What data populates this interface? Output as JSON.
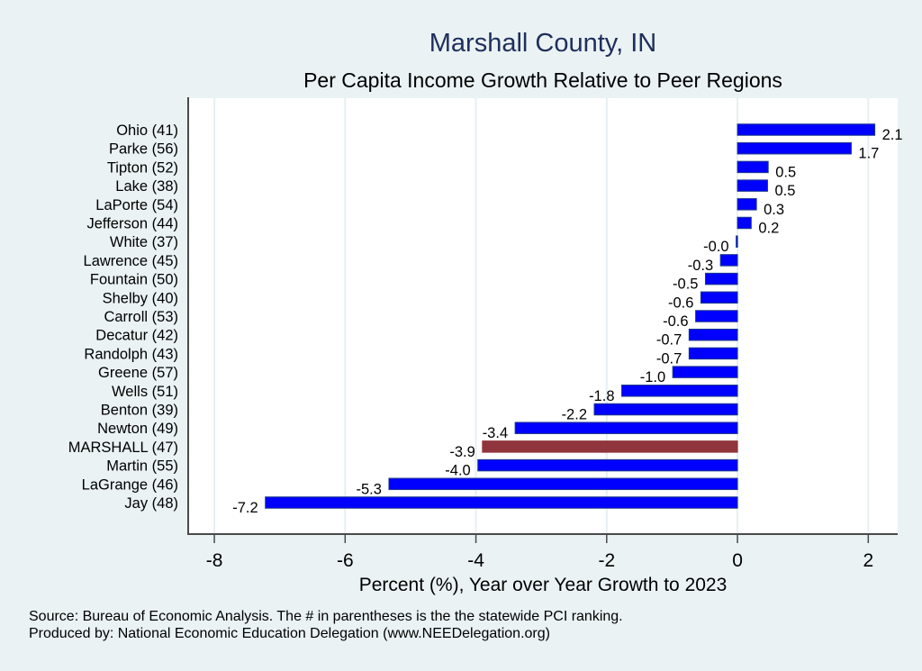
{
  "chart_data": {
    "type": "bar",
    "orientation": "horizontal",
    "title": "Marshall County, IN",
    "subtitle": "Per Capita Income Growth Relative to Peer Regions",
    "xlabel": "Percent (%), Year over Year Growth to 2023",
    "ylabel": "",
    "xlim": [
      -8.4,
      2.45
    ],
    "xticks": [
      -8,
      -6,
      -4,
      -2,
      0,
      2
    ],
    "xtick_labels": [
      "-8",
      "-6",
      "-4",
      "-2",
      "0",
      "2"
    ],
    "grid": "vertical",
    "legend": "none",
    "highlight_category": "MARSHALL (47)",
    "colors": {
      "bar": "#0000ff",
      "bar_edge": "#1a3a8a",
      "highlight": "#90353b",
      "title": "#1e2f5c",
      "background": "#eaf2f3",
      "plot_background": "#ffffff",
      "grid": "#e6eff2"
    },
    "categories": [
      "Ohio (41)",
      "Parke (56)",
      "Tipton (52)",
      "Lake (38)",
      "LaPorte (54)",
      "Jefferson (44)",
      "White (37)",
      "Lawrence (45)",
      "Fountain (50)",
      "Shelby (40)",
      "Carroll (53)",
      "Decatur (42)",
      "Randolph (43)",
      "Greene (57)",
      "Wells (51)",
      "Benton (39)",
      "Newton (49)",
      "MARSHALL (47)",
      "Martin (55)",
      "LaGrange (46)",
      "Jay (48)"
    ],
    "values": [
      2.1,
      1.74,
      0.47,
      0.46,
      0.29,
      0.21,
      -0.02,
      -0.26,
      -0.49,
      -0.56,
      -0.64,
      -0.74,
      -0.74,
      -0.99,
      -1.77,
      -2.19,
      -3.4,
      -3.9,
      -3.97,
      -5.33,
      -7.22
    ],
    "value_labels": [
      "2.1",
      "1.7",
      "0.5",
      "0.5",
      "0.3",
      "0.2",
      "-0.0",
      "-0.3",
      "-0.5",
      "-0.6",
      "-0.6",
      "-0.7",
      "-0.7",
      "-1.0",
      "-1.8",
      "-2.2",
      "-3.4",
      "-3.9",
      "-4.0",
      "-5.3",
      "-7.2"
    ]
  },
  "footer": {
    "line1": "Source: Bureau of Economic Analysis. The # in parentheses is the the statewide PCI ranking.",
    "line2": "Produced by: National Economic Education Delegation (www.NEEDelegation.org)"
  }
}
